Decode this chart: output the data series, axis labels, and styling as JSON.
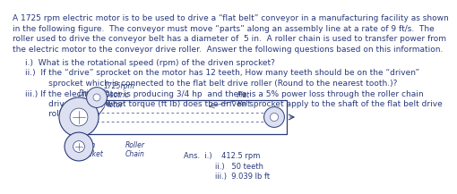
{
  "bg_color": "#ffffff",
  "text_color": "#2a3a7a",
  "title_lines": [
    "A 1725 rpm electric motor is to be used to drive a “flat belt” conveyor in a manufacturing facility as shown",
    "in the following figure.  The conveyor must move “parts” along an assembly line at a rate of 9 ft/s.  The",
    "roller used to drive the conveyor belt has a diameter of  5 in.  A roller chain is used to transfer power from",
    "the electric motor to the conveyor drive roller.  Answer the following questions based on this information."
  ],
  "q1": "i.)  What is the rotational speed (rpm) of the driven sprocket?",
  "q2a": "ii.)  If the “drive” sprocket on the motor has 12 teeth, How many teeth should be on the “driven”",
  "q2b": "       sprocket which is connected to the flat belt drive roller (Round to the nearest tooth.)?",
  "q3a": "iii.) If the electric motor is producing 3/4 hp  and there is a 5% power loss through the roller chain",
  "q3b": "       drive system, what torque (ft lb) does the driven sprocket apply to the shaft of the flat belt drive",
  "q3c": "       roller?",
  "ans1": "Ans.  i.)    412.5 rpm",
  "ans2": "        ii.)   50 teeth",
  "ans3": "        iii.)  9.039 lb ft",
  "drive_label": "Drive\nSprocket",
  "driven_label": "Driven\nSprocket",
  "motor_label": "1725rpm\nElectric\nMotor",
  "flat_belt_label": "Flat\nBelt",
  "roller_chain_label": "Roller\nChain"
}
